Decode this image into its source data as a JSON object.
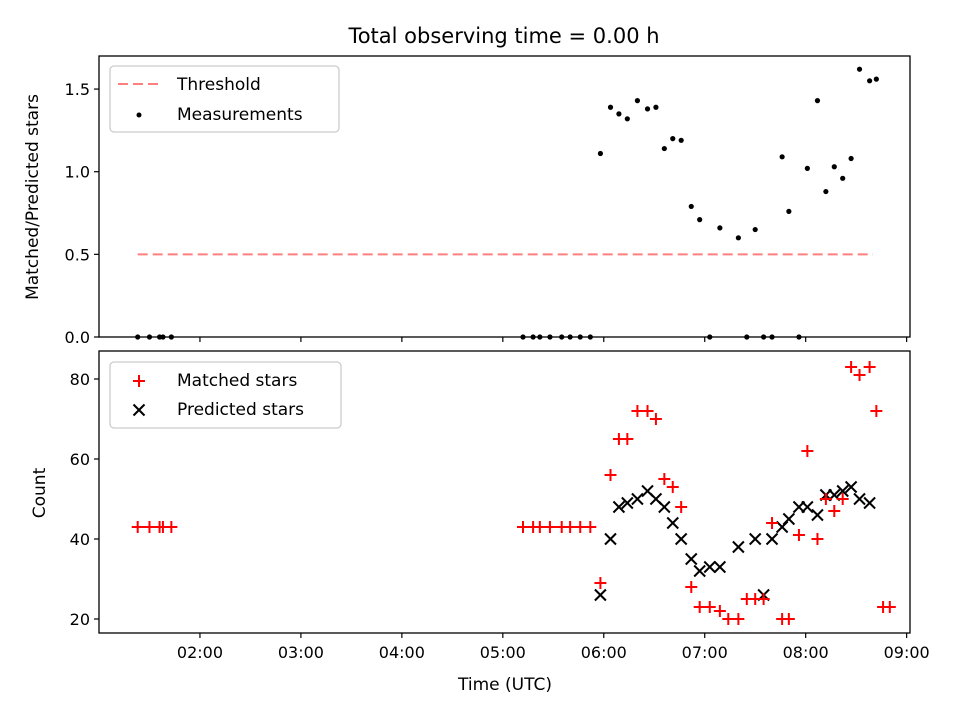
{
  "chart_data": [
    {
      "type": "scatter",
      "title": "Total observing time = 0.00 h",
      "xlabel": "",
      "ylabel": "Matched/Predicted stars",
      "xlim": [
        "01:00",
        "09:02"
      ],
      "ylim": [
        0,
        1.7
      ],
      "x_ticks": [
        "02:00",
        "03:00",
        "04:00",
        "05:00",
        "06:00",
        "07:00",
        "08:00",
        "09:00"
      ],
      "x_ticks_labeled": false,
      "y_ticks": [
        0.0,
        0.5,
        1.0,
        1.5
      ],
      "y_tick_labels": [
        "0.0",
        "0.5",
        "1.0",
        "1.5"
      ],
      "grid": false,
      "legend_position": "top-left",
      "series": [
        {
          "name": "Threshold",
          "kind": "line",
          "style": "dashed",
          "color": "#ff7f7f",
          "x": [
            "01:23",
            "08:40"
          ],
          "y": [
            0.5,
            0.5
          ]
        },
        {
          "name": "Measurements",
          "kind": "scatter",
          "marker": "dot",
          "color": "#000000",
          "x": [
            "01:23",
            "01:30",
            "01:36",
            "01:38",
            "01:43",
            "05:12",
            "05:18",
            "05:22",
            "05:28",
            "05:35",
            "05:40",
            "05:46",
            "05:52",
            "05:58",
            "06:04",
            "06:09",
            "06:14",
            "06:20",
            "06:26",
            "06:31",
            "06:36",
            "06:41",
            "06:46",
            "06:52",
            "06:57",
            "07:03",
            "07:09",
            "07:20",
            "07:25",
            "07:30",
            "07:35",
            "07:40",
            "07:46",
            "07:50",
            "07:56",
            "08:01",
            "08:07",
            "08:12",
            "08:17",
            "08:22",
            "08:27",
            "08:32",
            "08:38",
            "08:42"
          ],
          "y": [
            0.0,
            0.0,
            0.0,
            0.0,
            0.0,
            0.0,
            0.0,
            0.0,
            0.0,
            0.0,
            0.0,
            0.0,
            0.0,
            1.11,
            1.39,
            1.35,
            1.32,
            1.43,
            1.38,
            1.39,
            1.14,
            1.2,
            1.19,
            0.79,
            0.71,
            0.0,
            0.66,
            0.6,
            0.0,
            0.65,
            0.0,
            0.0,
            1.09,
            0.76,
            0.0,
            1.02,
            1.43,
            0.88,
            1.03,
            0.96,
            1.08,
            1.62,
            1.55,
            1.56
          ]
        }
      ]
    },
    {
      "type": "scatter",
      "title": "",
      "xlabel": "Time (UTC)",
      "ylabel": "Count",
      "xlim": [
        "01:00",
        "09:02"
      ],
      "ylim": [
        16.5,
        87
      ],
      "x_ticks": [
        "02:00",
        "03:00",
        "04:00",
        "05:00",
        "06:00",
        "07:00",
        "08:00",
        "09:00"
      ],
      "x_tick_labels": [
        "02:00",
        "03:00",
        "04:00",
        "05:00",
        "06:00",
        "07:00",
        "08:00",
        "09:00"
      ],
      "y_ticks": [
        20,
        40,
        60,
        80
      ],
      "y_tick_labels": [
        "20",
        "40",
        "60",
        "80"
      ],
      "grid": false,
      "legend_position": "top-left",
      "series": [
        {
          "name": "Matched stars",
          "kind": "scatter",
          "marker": "plus",
          "color": "#ff0000",
          "x": [
            "01:23",
            "01:30",
            "01:36",
            "01:38",
            "01:43",
            "05:12",
            "05:18",
            "05:22",
            "05:28",
            "05:35",
            "05:40",
            "05:46",
            "05:52",
            "05:58",
            "06:04",
            "06:09",
            "06:14",
            "06:20",
            "06:26",
            "06:31",
            "06:36",
            "06:41",
            "06:46",
            "06:52",
            "06:57",
            "07:03",
            "07:09",
            "07:14",
            "07:20",
            "07:25",
            "07:30",
            "07:35",
            "07:40",
            "07:46",
            "07:50",
            "07:56",
            "08:01",
            "08:07",
            "08:12",
            "08:17",
            "08:22",
            "08:27",
            "08:32",
            "08:38",
            "08:42",
            "08:46",
            "08:50"
          ],
          "y": [
            43,
            43,
            43,
            43,
            43,
            43,
            43,
            43,
            43,
            43,
            43,
            43,
            43,
            29,
            56,
            65,
            65,
            72,
            72,
            70,
            55,
            53,
            48,
            28,
            23,
            23,
            22,
            20,
            20,
            25,
            25,
            25,
            44,
            20,
            20,
            41,
            62,
            40,
            50,
            47,
            50,
            83,
            81,
            83,
            72,
            23,
            23
          ]
        },
        {
          "name": "Predicted stars",
          "kind": "scatter",
          "marker": "x",
          "color": "#000000",
          "x": [
            "05:58",
            "06:04",
            "06:09",
            "06:14",
            "06:20",
            "06:26",
            "06:31",
            "06:36",
            "06:41",
            "06:46",
            "06:52",
            "06:57",
            "07:03",
            "07:09",
            "07:20",
            "07:30",
            "07:35",
            "07:40",
            "07:46",
            "07:50",
            "07:56",
            "08:01",
            "08:07",
            "08:12",
            "08:17",
            "08:22",
            "08:27",
            "08:32",
            "08:38"
          ],
          "y": [
            26,
            40,
            48,
            49,
            50,
            52,
            50,
            48,
            44,
            40,
            35,
            32,
            33,
            33,
            38,
            40,
            26,
            40,
            43,
            45,
            48,
            48,
            46,
            51,
            51,
            52,
            53,
            50,
            49
          ]
        }
      ]
    }
  ]
}
